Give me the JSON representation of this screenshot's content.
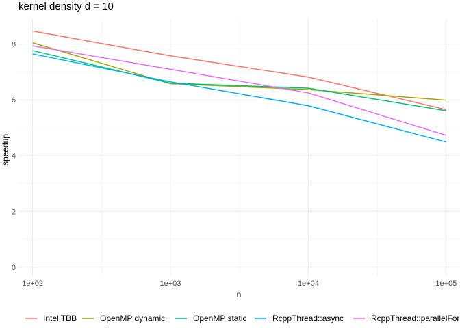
{
  "chart_data": {
    "type": "line",
    "title": "kernel density d = 10",
    "xlabel": "n",
    "ylabel": "speedup",
    "x_scale": "log10",
    "x": [
      100,
      1000,
      10000,
      100000
    ],
    "x_tick_labels": [
      "1e+02",
      "1e+03",
      "1e+04",
      "1e+05"
    ],
    "y_ticks": [
      0,
      2,
      4,
      6,
      8
    ],
    "xlim": [
      79,
      126000
    ],
    "ylim": [
      -0.3,
      8.9
    ],
    "grid": true,
    "legend_position": "bottom",
    "series": [
      {
        "name": "Intel TBB",
        "color": "#F8766D",
        "values": [
          8.47,
          7.58,
          6.82,
          5.65
        ]
      },
      {
        "name": "OpenMP dynamic",
        "color": "#A3A500",
        "values": [
          8.05,
          6.58,
          6.37,
          5.99
        ]
      },
      {
        "name": "OpenMP static",
        "color": "#00BF7D",
        "values": [
          7.77,
          6.6,
          6.42,
          5.61
        ]
      },
      {
        "name": "RcppThread::async",
        "color": "#00B0F6",
        "values": [
          7.65,
          6.65,
          5.79,
          4.49
        ]
      },
      {
        "name": "RcppThread::parallelFor",
        "color": "#E76BF3",
        "values": [
          7.94,
          7.1,
          6.25,
          4.73
        ]
      }
    ]
  }
}
